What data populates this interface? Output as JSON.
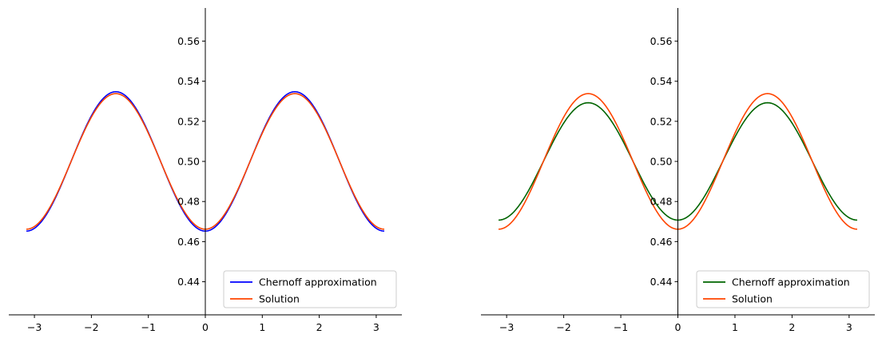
{
  "chart_data": [
    {
      "type": "line",
      "title": "",
      "xlabel": "",
      "ylabel": "",
      "xlim": [
        -3.45,
        3.45
      ],
      "ylim": [
        0.4235,
        0.5765
      ],
      "x_ticks": [
        -3,
        -2,
        -1,
        0,
        1,
        2,
        3
      ],
      "x_tick_labels": [
        "−3",
        "−2",
        "−1",
        "0",
        "1",
        "2",
        "3"
      ],
      "y_ticks": [
        0.44,
        0.46,
        0.48,
        0.5,
        0.52,
        0.54,
        0.56
      ],
      "y_tick_labels": [
        "0.44",
        "0.46",
        "0.48",
        "0.50",
        "0.52",
        "0.54",
        "0.56"
      ],
      "spines": "centered at zero (y-axis at x=0)",
      "grid": false,
      "legend_position": "lower-right",
      "x_domain": [
        -3.14159,
        3.14159
      ],
      "series": [
        {
          "name": "Chernoff approximation",
          "color": "#0000ff",
          "mean": 0.5,
          "amplitude": 0.0695,
          "formula": "mean + amplitude*(sin(x))^2 - amplitude/2"
        },
        {
          "name": "Solution",
          "color": "#ff4500",
          "mean": 0.5,
          "amplitude": 0.0676,
          "formula": "mean + amplitude*(sin(x))^2 - amplitude/2"
        }
      ]
    },
    {
      "type": "line",
      "title": "",
      "xlabel": "",
      "ylabel": "",
      "xlim": [
        -3.45,
        3.45
      ],
      "ylim": [
        0.4235,
        0.5765
      ],
      "x_ticks": [
        -3,
        -2,
        -1,
        0,
        1,
        2,
        3
      ],
      "x_tick_labels": [
        "−3",
        "−2",
        "−1",
        "0",
        "1",
        "2",
        "3"
      ],
      "y_ticks": [
        0.44,
        0.46,
        0.48,
        0.5,
        0.52,
        0.54,
        0.56
      ],
      "y_tick_labels": [
        "0.44",
        "0.46",
        "0.48",
        "0.50",
        "0.52",
        "0.54",
        "0.56"
      ],
      "spines": "centered at zero (y-axis at x=0)",
      "grid": false,
      "legend_position": "lower-right",
      "x_domain": [
        -3.14159,
        3.14159
      ],
      "series": [
        {
          "name": "Chernoff approximation",
          "color": "#006400",
          "mean": 0.5,
          "amplitude": 0.0585,
          "formula": "mean + amplitude*(sin(x))^2 - amplitude/2"
        },
        {
          "name": "Solution",
          "color": "#ff4500",
          "mean": 0.5,
          "amplitude": 0.0676,
          "formula": "mean + amplitude*(sin(x))^2 - amplitude/2"
        }
      ]
    }
  ]
}
